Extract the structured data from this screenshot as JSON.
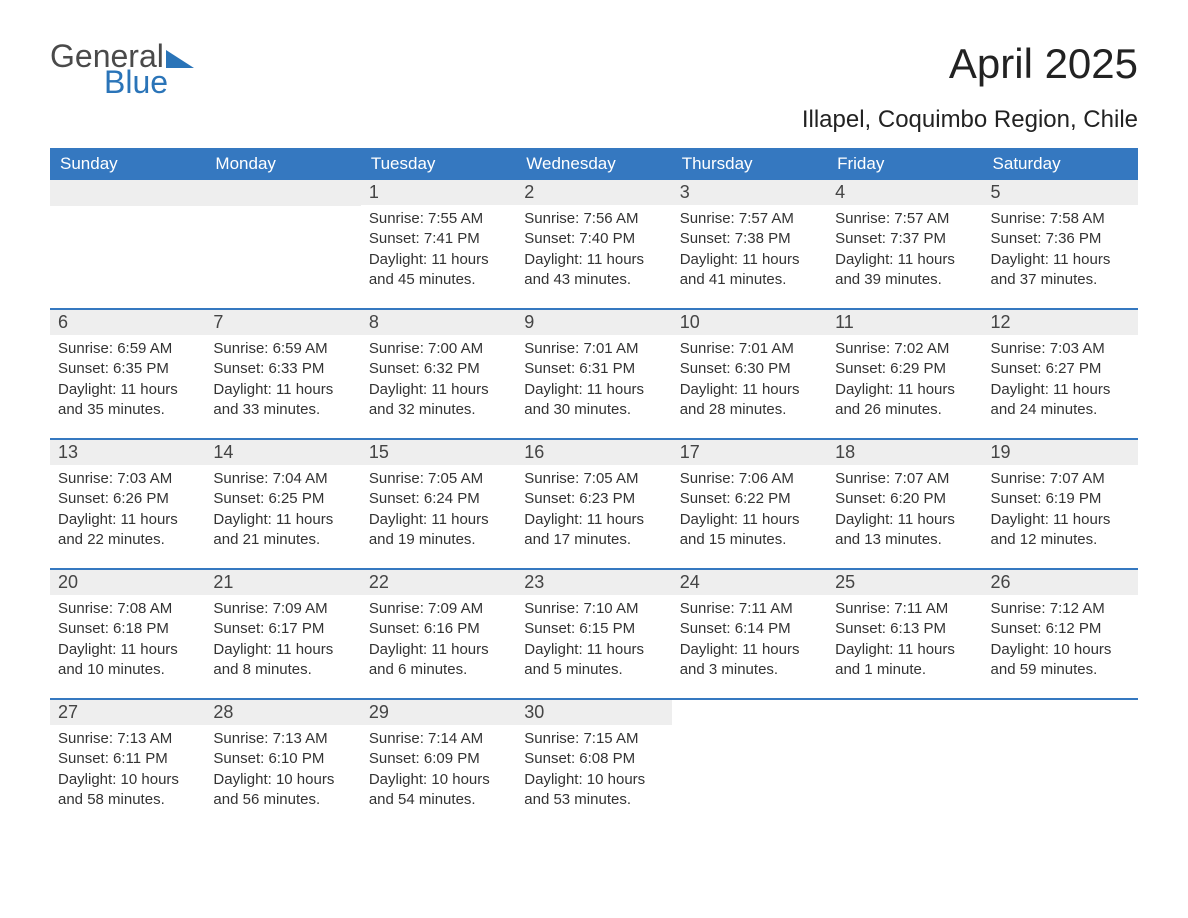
{
  "logo": {
    "word1": "General",
    "word2": "Blue"
  },
  "title": "April 2025",
  "location": "Illapel, Coquimbo Region, Chile",
  "colors": {
    "header_bg": "#3578c0",
    "header_text": "#ffffff",
    "daynum_bg": "#eeeeee",
    "week_border": "#3578c0",
    "body_text": "#333333",
    "logo_grey": "#4a4a4a",
    "logo_blue": "#2a74b8",
    "page_bg": "#ffffff"
  },
  "day_headers": [
    "Sunday",
    "Monday",
    "Tuesday",
    "Wednesday",
    "Thursday",
    "Friday",
    "Saturday"
  ],
  "label_sunrise": "Sunrise: ",
  "label_sunset": "Sunset: ",
  "label_daylight": "Daylight: ",
  "weeks": [
    [
      {
        "empty": true
      },
      {
        "empty": true
      },
      {
        "day": "1",
        "sunrise": "7:55 AM",
        "sunset": "7:41 PM",
        "daylight": "11 hours and 45 minutes."
      },
      {
        "day": "2",
        "sunrise": "7:56 AM",
        "sunset": "7:40 PM",
        "daylight": "11 hours and 43 minutes."
      },
      {
        "day": "3",
        "sunrise": "7:57 AM",
        "sunset": "7:38 PM",
        "daylight": "11 hours and 41 minutes."
      },
      {
        "day": "4",
        "sunrise": "7:57 AM",
        "sunset": "7:37 PM",
        "daylight": "11 hours and 39 minutes."
      },
      {
        "day": "5",
        "sunrise": "7:58 AM",
        "sunset": "7:36 PM",
        "daylight": "11 hours and 37 minutes."
      }
    ],
    [
      {
        "day": "6",
        "sunrise": "6:59 AM",
        "sunset": "6:35 PM",
        "daylight": "11 hours and 35 minutes."
      },
      {
        "day": "7",
        "sunrise": "6:59 AM",
        "sunset": "6:33 PM",
        "daylight": "11 hours and 33 minutes."
      },
      {
        "day": "8",
        "sunrise": "7:00 AM",
        "sunset": "6:32 PM",
        "daylight": "11 hours and 32 minutes."
      },
      {
        "day": "9",
        "sunrise": "7:01 AM",
        "sunset": "6:31 PM",
        "daylight": "11 hours and 30 minutes."
      },
      {
        "day": "10",
        "sunrise": "7:01 AM",
        "sunset": "6:30 PM",
        "daylight": "11 hours and 28 minutes."
      },
      {
        "day": "11",
        "sunrise": "7:02 AM",
        "sunset": "6:29 PM",
        "daylight": "11 hours and 26 minutes."
      },
      {
        "day": "12",
        "sunrise": "7:03 AM",
        "sunset": "6:27 PM",
        "daylight": "11 hours and 24 minutes."
      }
    ],
    [
      {
        "day": "13",
        "sunrise": "7:03 AM",
        "sunset": "6:26 PM",
        "daylight": "11 hours and 22 minutes."
      },
      {
        "day": "14",
        "sunrise": "7:04 AM",
        "sunset": "6:25 PM",
        "daylight": "11 hours and 21 minutes."
      },
      {
        "day": "15",
        "sunrise": "7:05 AM",
        "sunset": "6:24 PM",
        "daylight": "11 hours and 19 minutes."
      },
      {
        "day": "16",
        "sunrise": "7:05 AM",
        "sunset": "6:23 PM",
        "daylight": "11 hours and 17 minutes."
      },
      {
        "day": "17",
        "sunrise": "7:06 AM",
        "sunset": "6:22 PM",
        "daylight": "11 hours and 15 minutes."
      },
      {
        "day": "18",
        "sunrise": "7:07 AM",
        "sunset": "6:20 PM",
        "daylight": "11 hours and 13 minutes."
      },
      {
        "day": "19",
        "sunrise": "7:07 AM",
        "sunset": "6:19 PM",
        "daylight": "11 hours and 12 minutes."
      }
    ],
    [
      {
        "day": "20",
        "sunrise": "7:08 AM",
        "sunset": "6:18 PM",
        "daylight": "11 hours and 10 minutes."
      },
      {
        "day": "21",
        "sunrise": "7:09 AM",
        "sunset": "6:17 PM",
        "daylight": "11 hours and 8 minutes."
      },
      {
        "day": "22",
        "sunrise": "7:09 AM",
        "sunset": "6:16 PM",
        "daylight": "11 hours and 6 minutes."
      },
      {
        "day": "23",
        "sunrise": "7:10 AM",
        "sunset": "6:15 PM",
        "daylight": "11 hours and 5 minutes."
      },
      {
        "day": "24",
        "sunrise": "7:11 AM",
        "sunset": "6:14 PM",
        "daylight": "11 hours and 3 minutes."
      },
      {
        "day": "25",
        "sunrise": "7:11 AM",
        "sunset": "6:13 PM",
        "daylight": "11 hours and 1 minute."
      },
      {
        "day": "26",
        "sunrise": "7:12 AM",
        "sunset": "6:12 PM",
        "daylight": "10 hours and 59 minutes."
      }
    ],
    [
      {
        "day": "27",
        "sunrise": "7:13 AM",
        "sunset": "6:11 PM",
        "daylight": "10 hours and 58 minutes."
      },
      {
        "day": "28",
        "sunrise": "7:13 AM",
        "sunset": "6:10 PM",
        "daylight": "10 hours and 56 minutes."
      },
      {
        "day": "29",
        "sunrise": "7:14 AM",
        "sunset": "6:09 PM",
        "daylight": "10 hours and 54 minutes."
      },
      {
        "day": "30",
        "sunrise": "7:15 AM",
        "sunset": "6:08 PM",
        "daylight": "10 hours and 53 minutes."
      },
      {
        "empty": true,
        "nobar": true
      },
      {
        "empty": true,
        "nobar": true
      },
      {
        "empty": true,
        "nobar": true
      }
    ]
  ]
}
